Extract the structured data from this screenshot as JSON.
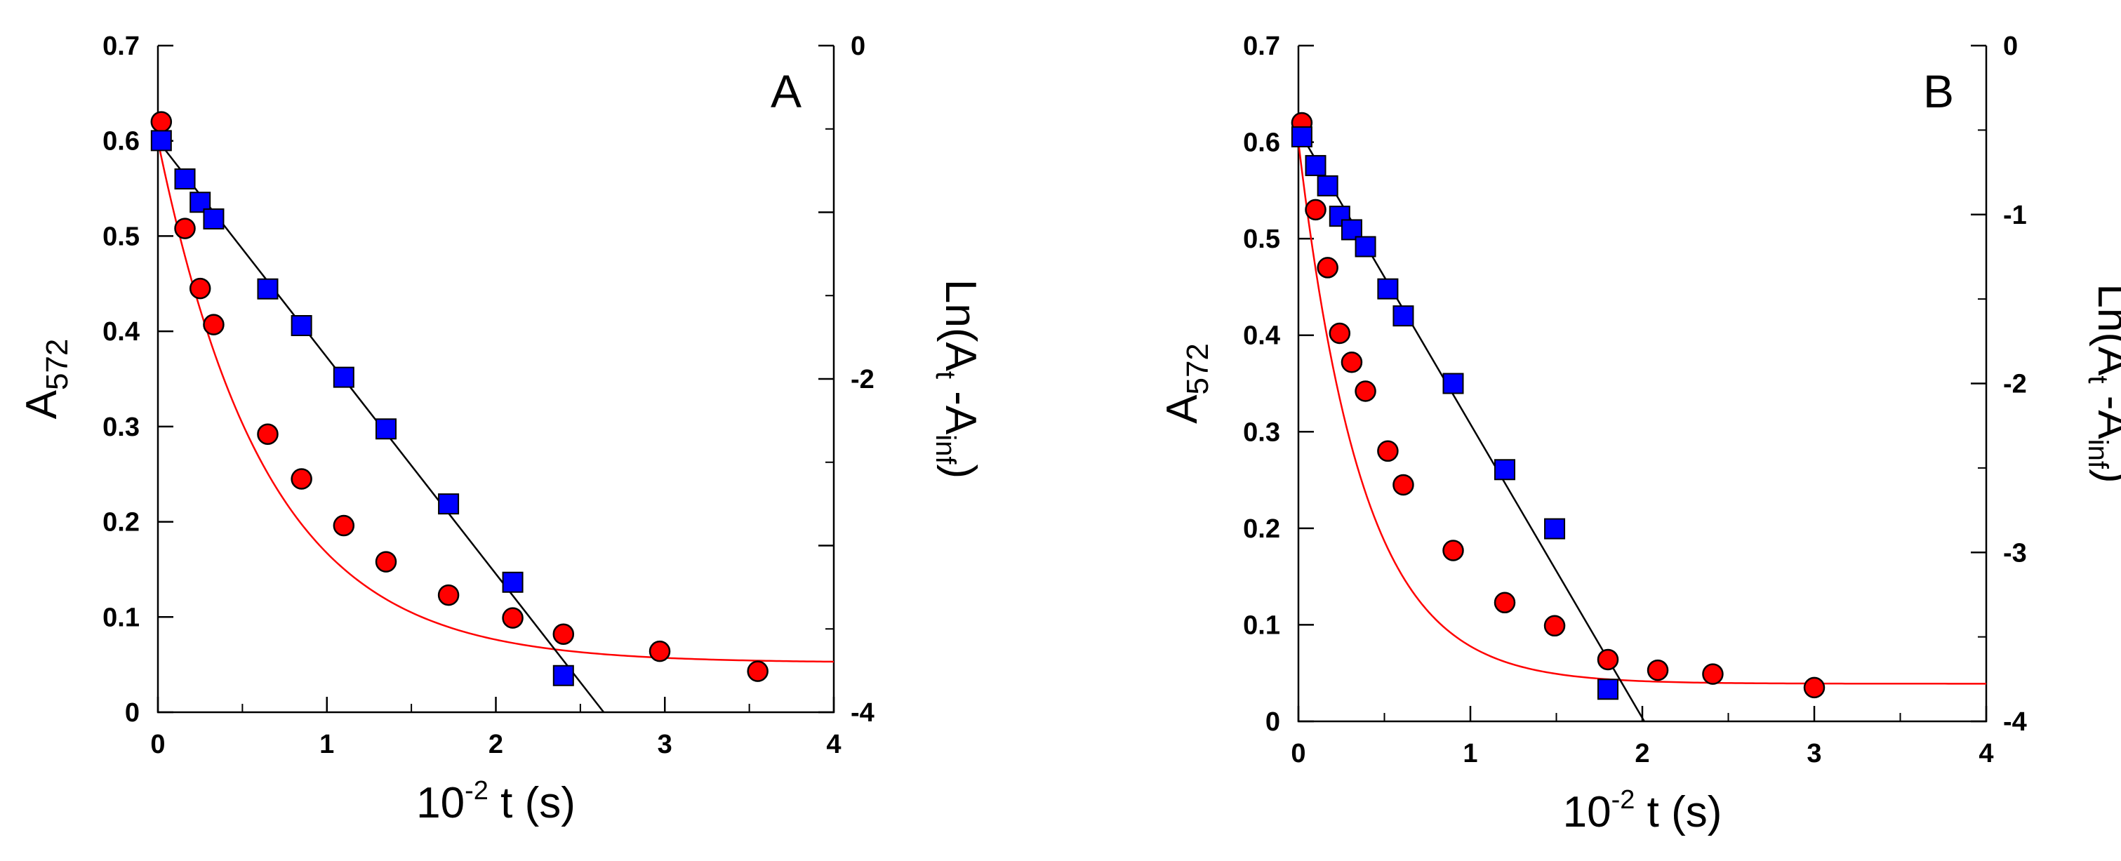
{
  "chart_data": [
    {
      "type": "scatter",
      "panel_label": "A",
      "xlabel": {
        "base": "10",
        "exp": "-2",
        "rest": " t (s)"
      },
      "ylabel_left": {
        "base": "A",
        "sub": "572"
      },
      "ylabel_right": {
        "pre": "Ln(A",
        "sub1": "t",
        "mid": " -A",
        "sub2": "inf",
        "post": ")"
      },
      "xlim": [
        0,
        4
      ],
      "ylim_left": [
        0,
        0.7
      ],
      "ylim_right": [
        -4,
        0
      ],
      "x_ticks": [
        "0",
        "1",
        "2",
        "3",
        "4"
      ],
      "y_ticks_left": [
        "0",
        "0.1",
        "0.2",
        "0.3",
        "0.4",
        "0.5",
        "0.6",
        "0.7"
      ],
      "y_ticks_right": [
        "-4",
        "-2",
        "0"
      ],
      "grid": false,
      "series": [
        {
          "axis": "left",
          "marker": "circle",
          "color": "#ff0000",
          "points": [
            [
              0.02,
              0.62
            ],
            [
              0.16,
              0.508
            ],
            [
              0.25,
              0.445
            ],
            [
              0.33,
              0.407
            ],
            [
              0.65,
              0.292
            ],
            [
              0.85,
              0.245
            ],
            [
              1.1,
              0.196
            ],
            [
              1.35,
              0.158
            ],
            [
              1.72,
              0.123
            ],
            [
              2.1,
              0.099
            ],
            [
              2.4,
              0.082
            ],
            [
              2.97,
              0.064
            ],
            [
              3.55,
              0.043
            ]
          ]
        },
        {
          "axis": "right",
          "marker": "square",
          "color": "#0000ff",
          "points": [
            [
              0.02,
              -0.57
            ],
            [
              0.16,
              -0.8
            ],
            [
              0.25,
              -0.94
            ],
            [
              0.33,
              -1.04
            ],
            [
              0.65,
              -1.46
            ],
            [
              0.85,
              -1.68
            ],
            [
              1.1,
              -1.99
            ],
            [
              1.35,
              -2.3
            ],
            [
              1.72,
              -2.75
            ],
            [
              2.1,
              -3.22
            ],
            [
              2.4,
              -3.78
            ]
          ]
        }
      ],
      "fits": [
        {
          "axis": "left",
          "kind": "exponential",
          "color": "#ff0000",
          "A0": 0.6,
          "k": 1.56,
          "Ainf": 0.052,
          "x_range": [
            0,
            4
          ]
        },
        {
          "axis": "right",
          "kind": "linear",
          "color": "#000000",
          "slope": -1.3,
          "intercept": -0.57,
          "x_range": [
            0,
            2.64
          ]
        }
      ]
    },
    {
      "type": "scatter",
      "panel_label": "B",
      "xlabel": {
        "base": "10",
        "exp": "-2",
        "rest": " t (s)"
      },
      "ylabel_left": {
        "base": "A",
        "sub": "572"
      },
      "ylabel_right": {
        "pre": "Ln(A",
        "sub1": "t",
        "mid": " -A",
        "sub2": "inf",
        "post": ")"
      },
      "xlim": [
        0,
        4
      ],
      "ylim_left": [
        0,
        0.7
      ],
      "ylim_right": [
        -4,
        0
      ],
      "x_ticks": [
        "0",
        "1",
        "2",
        "3",
        "4"
      ],
      "y_ticks_left": [
        "0",
        "0.1",
        "0.2",
        "0.3",
        "0.4",
        "0.5",
        "0.6",
        "0.7"
      ],
      "y_ticks_right": [
        "-4",
        "-3",
        "-2",
        "-1",
        "0"
      ],
      "grid": false,
      "series": [
        {
          "axis": "left",
          "marker": "circle",
          "color": "#ff0000",
          "points": [
            [
              0.02,
              0.62
            ],
            [
              0.1,
              0.53
            ],
            [
              0.17,
              0.47
            ],
            [
              0.24,
              0.402
            ],
            [
              0.31,
              0.372
            ],
            [
              0.39,
              0.342
            ],
            [
              0.52,
              0.28
            ],
            [
              0.61,
              0.245
            ],
            [
              0.9,
              0.177
            ],
            [
              1.2,
              0.123
            ],
            [
              1.49,
              0.099
            ],
            [
              1.8,
              0.064
            ],
            [
              2.09,
              0.053
            ],
            [
              2.41,
              0.049
            ],
            [
              3.0,
              0.035
            ]
          ]
        },
        {
          "axis": "right",
          "marker": "square",
          "color": "#0000ff",
          "points": [
            [
              0.02,
              -0.54
            ],
            [
              0.1,
              -0.71
            ],
            [
              0.17,
              -0.83
            ],
            [
              0.24,
              -1.01
            ],
            [
              0.31,
              -1.09
            ],
            [
              0.39,
              -1.19
            ],
            [
              0.52,
              -1.44
            ],
            [
              0.61,
              -1.6
            ],
            [
              0.9,
              -2.0
            ],
            [
              1.2,
              -2.51
            ],
            [
              1.49,
              -2.86
            ],
            [
              1.8,
              -3.81
            ]
          ]
        }
      ],
      "fits": [
        {
          "axis": "left",
          "kind": "exponential",
          "color": "#ff0000",
          "A0": 0.6,
          "k": 2.67,
          "Ainf": 0.039,
          "x_range": [
            0,
            4
          ]
        },
        {
          "axis": "right",
          "kind": "linear",
          "color": "#000000",
          "slope": -1.74,
          "intercept": -0.5,
          "x_range": [
            0,
            2.02
          ]
        }
      ]
    }
  ]
}
